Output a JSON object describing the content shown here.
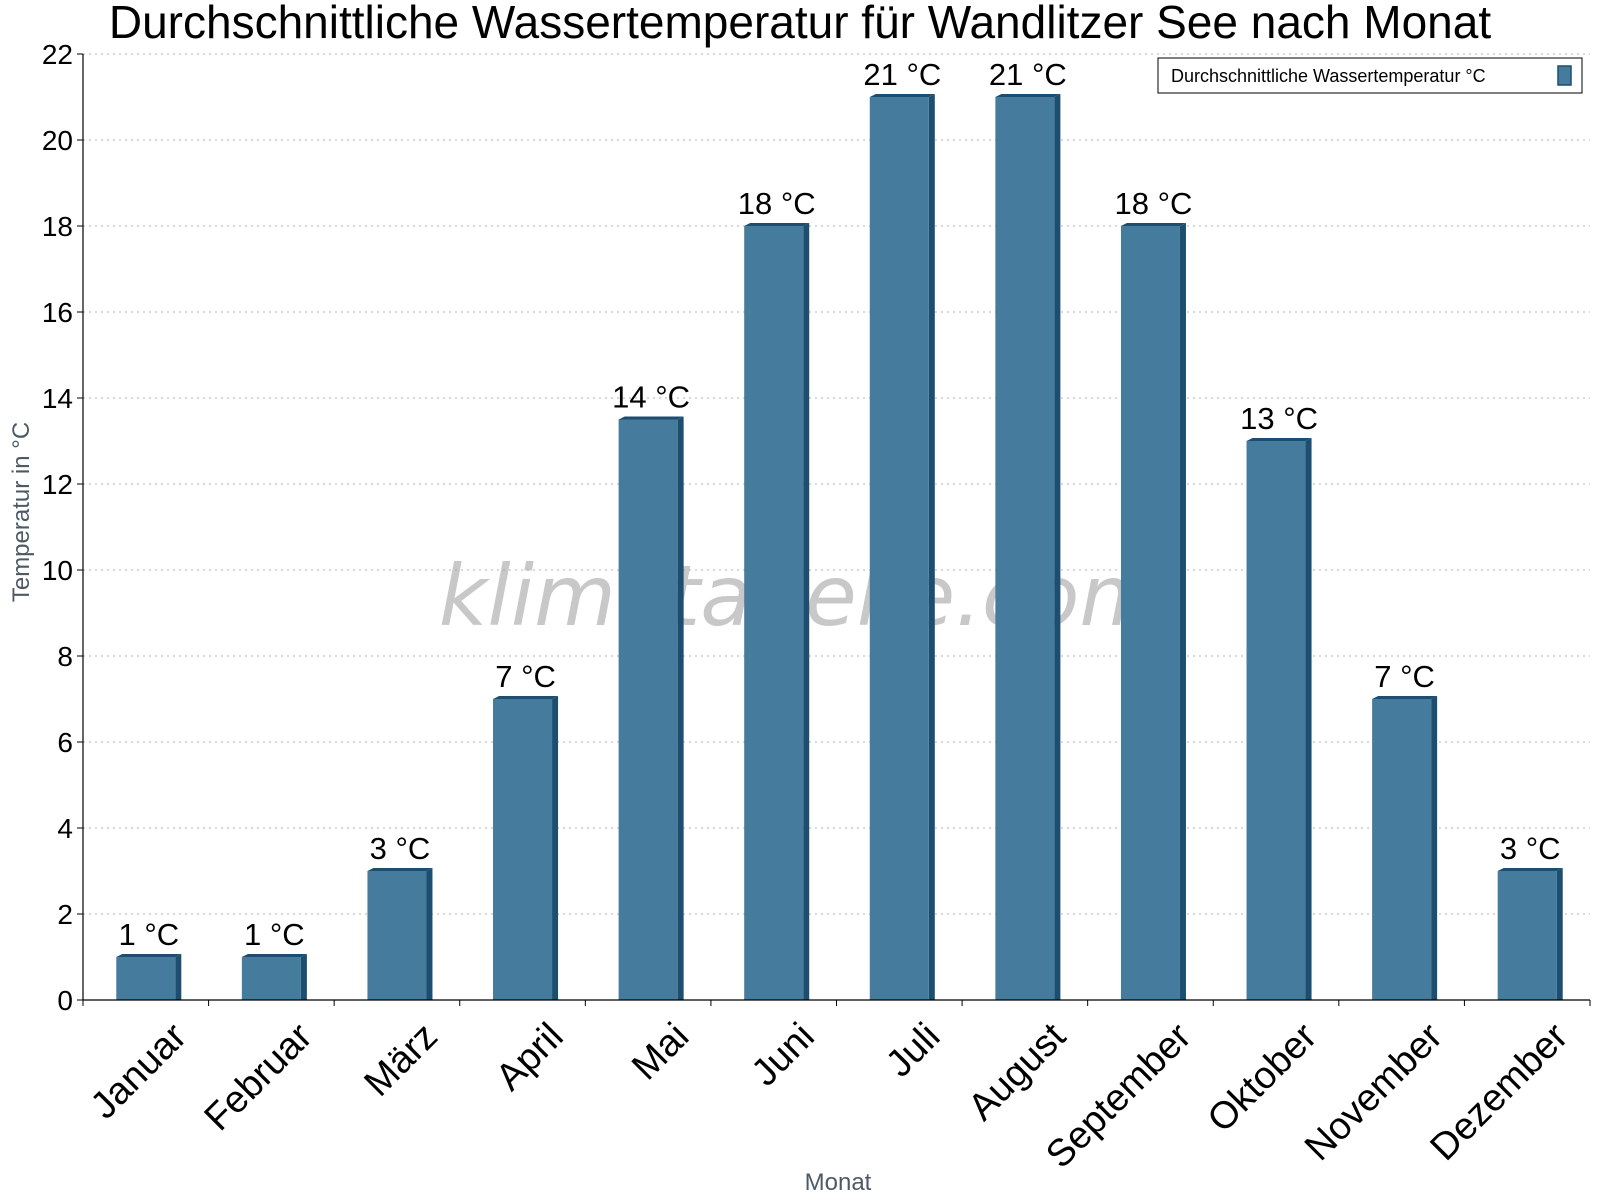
{
  "watermark": "klimatabelle.com",
  "chart_data": {
    "type": "bar",
    "title": "Durchschnittliche Wassertemperatur für Wandlitzer See nach Monat",
    "xlabel": "Monat",
    "ylabel": "Temperatur in °C",
    "ylim": [
      0,
      22
    ],
    "yticks": [
      0,
      2,
      4,
      6,
      8,
      10,
      12,
      14,
      16,
      18,
      20,
      22
    ],
    "grid": true,
    "legend_position": "top-right",
    "categories": [
      "Januar",
      "Februar",
      "März",
      "April",
      "Mai",
      "Juni",
      "Juli",
      "August",
      "September",
      "Oktober",
      "November",
      "Dezember"
    ],
    "series": [
      {
        "name": "Durchschnittliche Wassertemperatur °C",
        "color": "#457b9d",
        "shade_color": "#1d4e6f",
        "values": [
          1,
          1,
          3,
          7,
          13.5,
          18,
          21,
          21,
          18,
          13,
          7,
          3
        ],
        "labels": [
          "1 °C",
          "1 °C",
          "3 °C",
          "7 °C",
          "14 °C",
          "18 °C",
          "21 °C",
          "21 °C",
          "18 °C",
          "13 °C",
          "7 °C",
          "3 °C"
        ]
      }
    ]
  }
}
